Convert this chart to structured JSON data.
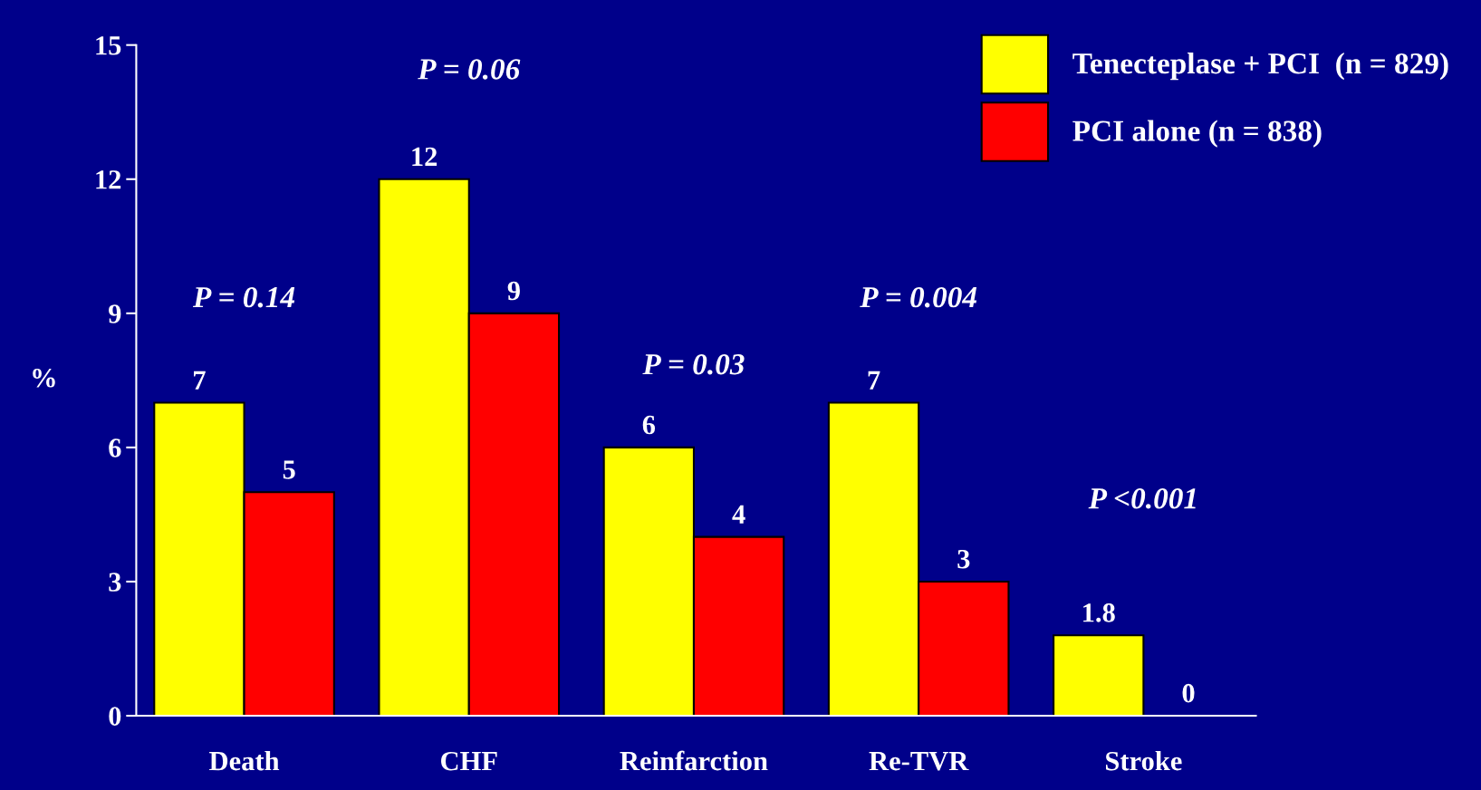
{
  "chart_data": {
    "type": "bar",
    "ylabel": "%",
    "categories": [
      "Death",
      "CHF",
      "Reinfarction",
      "Re-TVR",
      "Stroke"
    ],
    "series": [
      {
        "name": "Tenecteplase + PCI  (n = 829)",
        "color": "#ffff00",
        "values": [
          7,
          12,
          6,
          7,
          1.8
        ]
      },
      {
        "name": "PCI alone (n = 838)",
        "color": "#ff0000",
        "values": [
          5,
          9,
          4,
          3,
          0
        ]
      }
    ],
    "ylim": [
      0,
      15
    ],
    "yticks": [
      0,
      3,
      6,
      9,
      12,
      15
    ],
    "grid": false,
    "legend": "top right",
    "data_labels": true,
    "annotations": [
      "P = 0.14",
      "P = 0.06",
      "P = 0.03",
      "P = 0.004",
      "P <0.001"
    ]
  }
}
